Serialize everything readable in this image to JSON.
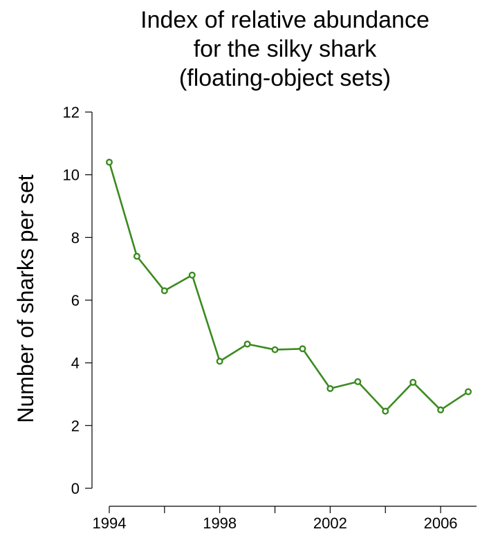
{
  "chart_data": {
    "type": "line",
    "title_lines": [
      "Index of relative abundance",
      "for the silky shark",
      "(floating-object sets)"
    ],
    "xlabel": "",
    "ylabel": "Number of sharks per set",
    "xlim": [
      1994,
      2007
    ],
    "ylim": [
      0,
      12
    ],
    "x_ticks": [
      1994,
      1996,
      1998,
      2000,
      2002,
      2004,
      2006
    ],
    "x_tick_labels": [
      "1994",
      "",
      "1998",
      "",
      "2002",
      "",
      "2006"
    ],
    "y_ticks": [
      0,
      2,
      4,
      6,
      8,
      10,
      12
    ],
    "y_tick_labels": [
      "0",
      "2",
      "4",
      "6",
      "8",
      "10",
      "12"
    ],
    "grid": false,
    "series": [
      {
        "color": "#3a8a1f",
        "x": [
          1994,
          1995,
          1996,
          1997,
          1998,
          1999,
          2000,
          2001,
          2002,
          2003,
          2004,
          2005,
          2006,
          2007
        ],
        "y": [
          10.4,
          7.4,
          6.3,
          6.8,
          4.05,
          4.6,
          4.42,
          4.45,
          3.18,
          3.4,
          2.46,
          3.38,
          2.5,
          3.08
        ]
      }
    ]
  }
}
